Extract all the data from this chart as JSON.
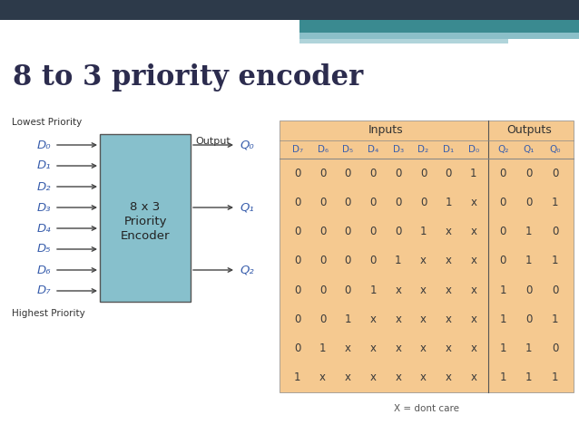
{
  "title": "8 to 3 priority encoder",
  "title_fontsize": 22,
  "title_color": "#2c2c4e",
  "background_color": "#ffffff",
  "box_color": "#87c0cc",
  "box_text": [
    "8 x 3",
    "Priority",
    "Encoder"
  ],
  "inputs": [
    "D₀",
    "D₁",
    "D₂",
    "D₃",
    "D₄",
    "D₅",
    "D₆",
    "D₇"
  ],
  "outputs": [
    "Q₀",
    "Q₁",
    "Q₂"
  ],
  "lowest_priority_label": "Lowest Priority",
  "highest_priority_label": "Highest Priority",
  "output_label": "Output",
  "table_bg_color": "#f5c990",
  "table_border_color": "#888888",
  "table_text_color": "#3a5fad",
  "data_color": "#3a3a3a",
  "inputs_header": "Inputs",
  "outputs_header": "Outputs",
  "col_headers": [
    "D₇",
    "D₆",
    "D₅",
    "D₄",
    "D₃",
    "D₂",
    "D₁",
    "D₀",
    "Q₂",
    "Q₁",
    "Q₀"
  ],
  "table_rows": [
    [
      "0",
      "0",
      "0",
      "0",
      "0",
      "0",
      "0",
      "1",
      "0",
      "0",
      "0"
    ],
    [
      "0",
      "0",
      "0",
      "0",
      "0",
      "0",
      "1",
      "x",
      "0",
      "0",
      "1"
    ],
    [
      "0",
      "0",
      "0",
      "0",
      "0",
      "1",
      "x",
      "x",
      "0",
      "1",
      "0"
    ],
    [
      "0",
      "0",
      "0",
      "0",
      "1",
      "x",
      "x",
      "x",
      "0",
      "1",
      "1"
    ],
    [
      "0",
      "0",
      "0",
      "1",
      "x",
      "x",
      "x",
      "x",
      "1",
      "0",
      "0"
    ],
    [
      "0",
      "0",
      "1",
      "x",
      "x",
      "x",
      "x",
      "x",
      "1",
      "0",
      "1"
    ],
    [
      "0",
      "1",
      "x",
      "x",
      "x",
      "x",
      "x",
      "x",
      "1",
      "1",
      "0"
    ],
    [
      "1",
      "x",
      "x",
      "x",
      "x",
      "x",
      "x",
      "x",
      "1",
      "1",
      "1"
    ]
  ],
  "footnote": "X = dont care",
  "header_dark_color": "#2d3a4a",
  "header_teal_color": "#3a8a90",
  "header_light_teal": "#8bbfc8",
  "header_pale_teal": "#b0d4da"
}
